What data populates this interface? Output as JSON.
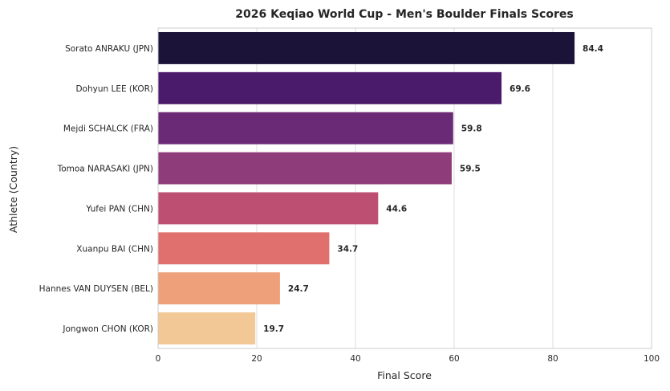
{
  "chart_data": {
    "type": "bar",
    "orientation": "horizontal",
    "title": "2026 Keqiao World Cup - Men's Boulder Finals Scores",
    "xlabel": "Final Score",
    "ylabel": "Athlete (Country)",
    "xlim": [
      0,
      100
    ],
    "xticks": [
      0,
      20,
      40,
      60,
      80,
      100
    ],
    "grid": true,
    "categories": [
      "Sorato ANRAKU (JPN)",
      "Dohyun LEE (KOR)",
      "Mejdi SCHALCK (FRA)",
      "Tomoa NARASAKI (JPN)",
      "Yufei PAN (CHN)",
      "Xuanpu BAI (CHN)",
      "Hannes VAN DUYSEN (BEL)",
      "Jongwon CHON (KOR)"
    ],
    "values": [
      84.4,
      69.6,
      59.8,
      59.5,
      44.6,
      34.7,
      24.7,
      19.7
    ],
    "value_labels": [
      "84.4",
      "69.6",
      "59.8",
      "59.5",
      "44.6",
      "34.7",
      "24.7",
      "19.7"
    ],
    "colors": [
      "#1c1438",
      "#4a1a6b",
      "#6b2a75",
      "#8e3c7a",
      "#bd4f73",
      "#e0706e",
      "#eea07a",
      "#f2c896"
    ]
  }
}
